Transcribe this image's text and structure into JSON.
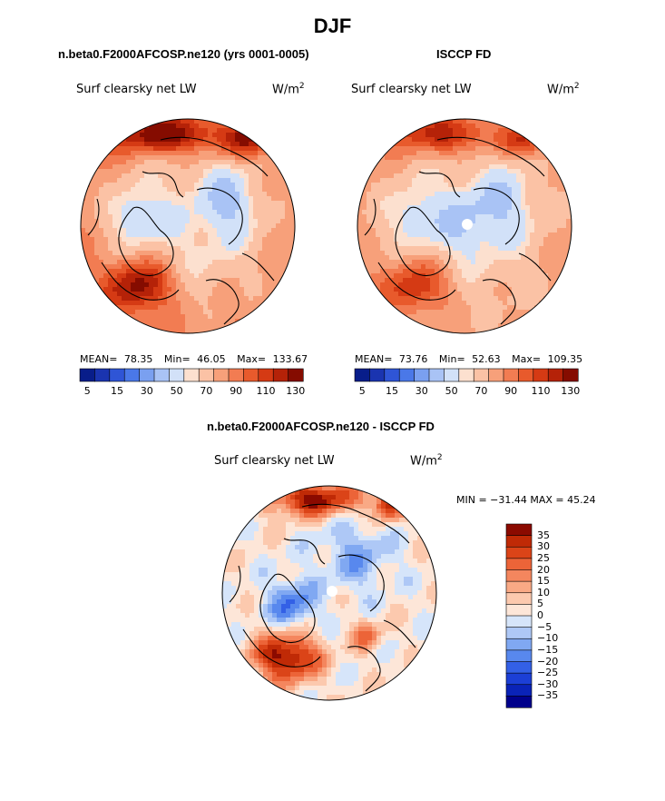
{
  "page": {
    "season": "DJF",
    "left_title": "n.beta0.F2000AFCOSP.ne120 (yrs 0001-0005)",
    "right_title": "ISCCP FD",
    "diff_title": "n.beta0.F2000AFCOSP.ne120 - ISCCP FD"
  },
  "panels": [
    {
      "variable": "Surf clearsky net LW",
      "units_base": "W/m",
      "units_exp": "2",
      "mean_label": "MEAN=",
      "mean_value": "78.35",
      "min_label": "Min=",
      "min_value": "46.05",
      "max_label": "Max=",
      "max_value": "133.67"
    },
    {
      "variable": "Surf clearsky net LW",
      "units_base": "W/m",
      "units_exp": "2",
      "mean_label": "MEAN=",
      "mean_value": "73.76",
      "min_label": "Min=",
      "min_value": "52.63",
      "max_label": "Max=",
      "max_value": "109.35"
    }
  ],
  "diff_panel": {
    "variable": "Surf clearsky net LW",
    "units_base": "W/m",
    "units_exp": "2",
    "min_max_text": "MIN = −31.44 MAX =  45.24"
  },
  "colors": {
    "abs_colorbar": [
      "#081d8a",
      "#1a34b0",
      "#2f55d6",
      "#4a78e8",
      "#7aa0f0",
      "#a9c3f5",
      "#d2e1f8",
      "#fce0cf",
      "#fbc2a5",
      "#f7a07a",
      "#f27c52",
      "#e85a2c",
      "#d53a14",
      "#b52208",
      "#850c00"
    ],
    "diff_colorbar": [
      "#00008b",
      "#0a23b8",
      "#1c3fd6",
      "#3360e6",
      "#5888ee",
      "#80a8f2",
      "#aec8f6",
      "#d6e5fa",
      "#fde6d8",
      "#fcc9ae",
      "#f9a985",
      "#f4865e",
      "#ec6438",
      "#db4418",
      "#c02a06",
      "#8b0a00"
    ],
    "land": "#fbd6c0",
    "coast": "#000000"
  },
  "chart_data": [
    {
      "type": "heatmap",
      "projection": "north polar stereographic",
      "title": "n.beta0.F2000AFCOSP.ne120 (yrs 0001-0005)",
      "variable": "Surf clearsky net LW",
      "units": "W/m^2",
      "mean": 78.35,
      "min": 46.05,
      "max": 133.67,
      "colorbar_levels": [
        5,
        10,
        15,
        20,
        30,
        40,
        50,
        60,
        70,
        80,
        90,
        100,
        110,
        120,
        130
      ],
      "colorbar_tick_labels": [
        "5",
        "15",
        "30",
        "50",
        "70",
        "90",
        "110",
        "130"
      ]
    },
    {
      "type": "heatmap",
      "projection": "north polar stereographic",
      "title": "ISCCP FD",
      "variable": "Surf clearsky net LW",
      "units": "W/m^2",
      "mean": 73.76,
      "min": 52.63,
      "max": 109.35,
      "colorbar_levels": [
        5,
        10,
        15,
        20,
        30,
        40,
        50,
        60,
        70,
        80,
        90,
        100,
        110,
        120,
        130
      ],
      "colorbar_tick_labels": [
        "5",
        "15",
        "30",
        "50",
        "70",
        "90",
        "110",
        "130"
      ]
    },
    {
      "type": "heatmap",
      "projection": "north polar stereographic",
      "title": "n.beta0.F2000AFCOSP.ne120 - ISCCP FD",
      "variable": "Surf clearsky net LW",
      "units": "W/m^2",
      "min": -31.44,
      "max": 45.24,
      "colorbar_levels": [
        35,
        30,
        25,
        20,
        15,
        10,
        5,
        0,
        -5,
        -10,
        -15,
        -20,
        -25,
        -30,
        -35
      ],
      "colorbar_tick_labels": [
        "35",
        "30",
        "25",
        "20",
        "15",
        "10",
        "5",
        "0",
        "−5",
        "−10",
        "−15",
        "−20",
        "−25",
        "−30",
        "−35"
      ]
    }
  ]
}
